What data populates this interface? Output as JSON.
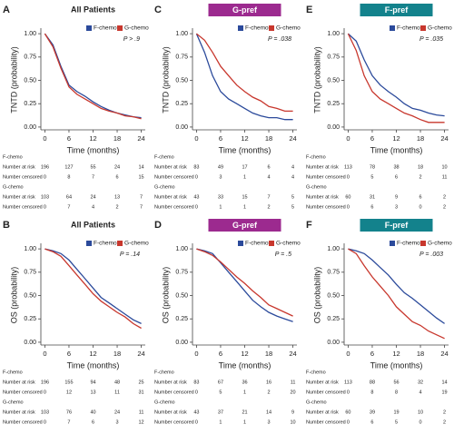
{
  "chart_data": [
    {
      "type": "line",
      "label": "A",
      "title": "All Patients",
      "y_label": "TNTD (probability)",
      "x_label": "Time (months)",
      "annotation": "P > .9",
      "xlim": [
        -1,
        25
      ],
      "ylim": [
        -0.03,
        1.04
      ],
      "xticks": [
        0,
        6,
        12,
        18,
        24
      ],
      "yticks": [
        {
          "value": 0,
          "label": "0.00"
        },
        {
          "value": 0.25,
          "label": "0.25"
        },
        {
          "value": 0.5,
          "label": "0.50"
        },
        {
          "value": 0.75,
          "label": "0.75"
        },
        {
          "value": 1,
          "label": "1.00"
        }
      ],
      "series": [
        {
          "name": "F-chemo",
          "color": "#2b4a9b",
          "x": [
            0,
            2,
            4,
            6,
            8,
            10,
            12,
            14,
            16,
            18,
            20,
            22,
            24
          ],
          "values": [
            1,
            0.88,
            0.65,
            0.45,
            0.38,
            0.33,
            0.27,
            0.22,
            0.18,
            0.15,
            0.13,
            0.11,
            0.1
          ]
        },
        {
          "name": "G-chemo",
          "color": "#c8372d",
          "x": [
            0,
            2,
            4,
            6,
            8,
            10,
            12,
            14,
            16,
            18,
            20,
            22,
            24
          ],
          "values": [
            1,
            0.86,
            0.63,
            0.43,
            0.35,
            0.3,
            0.25,
            0.2,
            0.17,
            0.15,
            0.12,
            0.11,
            0.09
          ]
        }
      ],
      "risk_table": [
        {
          "name": "F-chemo",
          "rows": [
            {
              "label": "Number at risk",
              "values": [
                196,
                127,
                55,
                24,
                14
              ]
            },
            {
              "label": "Number censored",
              "values": [
                0,
                8,
                7,
                6,
                15
              ]
            }
          ]
        },
        {
          "name": "G-chemo",
          "rows": [
            {
              "label": "Number at risk",
              "values": [
                103,
                64,
                24,
                13,
                7
              ]
            },
            {
              "label": "Number censored",
              "values": [
                0,
                7,
                4,
                2,
                7
              ]
            }
          ]
        }
      ]
    },
    {
      "type": "line",
      "label": "B",
      "title": "All Patients",
      "y_label": "OS (probability)",
      "x_label": "Time (months)",
      "annotation": "P = .14",
      "xlim": [
        -1,
        25
      ],
      "ylim": [
        -0.03,
        1.04
      ],
      "xticks": [
        0,
        6,
        12,
        18,
        24
      ],
      "yticks": [
        {
          "value": 0,
          "label": "0.00"
        },
        {
          "value": 0.25,
          "label": "0.25"
        },
        {
          "value": 0.5,
          "label": "0.50"
        },
        {
          "value": 0.75,
          "label": "0.75"
        },
        {
          "value": 1,
          "label": "1.00"
        }
      ],
      "series": [
        {
          "name": "F-chemo",
          "color": "#2b4a9b",
          "x": [
            0,
            2,
            4,
            6,
            8,
            10,
            12,
            14,
            16,
            18,
            20,
            22,
            24
          ],
          "values": [
            1,
            0.98,
            0.95,
            0.88,
            0.78,
            0.68,
            0.58,
            0.48,
            0.42,
            0.36,
            0.3,
            0.24,
            0.2
          ]
        },
        {
          "name": "G-chemo",
          "color": "#c8372d",
          "x": [
            0,
            2,
            4,
            6,
            8,
            10,
            12,
            14,
            16,
            18,
            20,
            22,
            24
          ],
          "values": [
            1,
            0.97,
            0.92,
            0.82,
            0.72,
            0.62,
            0.52,
            0.44,
            0.38,
            0.32,
            0.27,
            0.2,
            0.15
          ]
        }
      ],
      "risk_table": [
        {
          "name": "F-chemo",
          "rows": [
            {
              "label": "Number at risk",
              "values": [
                196,
                155,
                94,
                48,
                25
              ]
            },
            {
              "label": "Number censored",
              "values": [
                0,
                12,
                13,
                11,
                31
              ]
            }
          ]
        },
        {
          "name": "G-chemo",
          "rows": [
            {
              "label": "Number at risk",
              "values": [
                103,
                76,
                40,
                24,
                11
              ]
            },
            {
              "label": "Number censored",
              "values": [
                0,
                7,
                6,
                3,
                12
              ]
            }
          ]
        }
      ]
    },
    {
      "type": "line",
      "label": "C",
      "title": "G-pref",
      "title_box_color": "#9c2a8f",
      "y_label": "TNTD (probability)",
      "x_label": "Time (months)",
      "annotation": "P = .038",
      "xlim": [
        -1,
        25
      ],
      "ylim": [
        -0.03,
        1.04
      ],
      "xticks": [
        0,
        6,
        12,
        18,
        24
      ],
      "yticks": [
        {
          "value": 0,
          "label": "0.00"
        },
        {
          "value": 0.25,
          "label": "0.25"
        },
        {
          "value": 0.5,
          "label": "0.50"
        },
        {
          "value": 0.75,
          "label": "0.75"
        },
        {
          "value": 1,
          "label": "1.00"
        }
      ],
      "series": [
        {
          "name": "F-chemo",
          "color": "#2b4a9b",
          "x": [
            0,
            2,
            4,
            6,
            8,
            10,
            12,
            14,
            16,
            18,
            20,
            22,
            24
          ],
          "values": [
            1,
            0.8,
            0.55,
            0.38,
            0.3,
            0.25,
            0.2,
            0.15,
            0.12,
            0.1,
            0.1,
            0.08,
            0.08
          ]
        },
        {
          "name": "G-chemo",
          "color": "#c8372d",
          "x": [
            0,
            2,
            4,
            6,
            8,
            10,
            12,
            14,
            16,
            18,
            20,
            22,
            24
          ],
          "values": [
            1,
            0.93,
            0.8,
            0.65,
            0.55,
            0.45,
            0.38,
            0.32,
            0.28,
            0.22,
            0.2,
            0.17,
            0.17
          ]
        }
      ],
      "risk_table": [
        {
          "name": "F-chemo",
          "rows": [
            {
              "label": "Number at risk",
              "values": [
                83,
                49,
                17,
                6,
                4
              ]
            },
            {
              "label": "Number censored",
              "values": [
                0,
                3,
                1,
                4,
                4
              ]
            }
          ]
        },
        {
          "name": "G-chemo",
          "rows": [
            {
              "label": "Number at risk",
              "values": [
                43,
                33,
                15,
                7,
                5
              ]
            },
            {
              "label": "Number censored",
              "values": [
                0,
                1,
                1,
                2,
                5
              ]
            }
          ]
        }
      ]
    },
    {
      "type": "line",
      "label": "D",
      "title": "G-pref",
      "title_box_color": "#9c2a8f",
      "y_label": "OS (probability)",
      "x_label": "Time (months)",
      "annotation": "P = .5",
      "xlim": [
        -1,
        25
      ],
      "ylim": [
        -0.03,
        1.04
      ],
      "xticks": [
        0,
        6,
        12,
        18,
        24
      ],
      "yticks": [
        {
          "value": 0,
          "label": "0.00"
        },
        {
          "value": 0.25,
          "label": "0.25"
        },
        {
          "value": 0.5,
          "label": "0.50"
        },
        {
          "value": 0.75,
          "label": "0.75"
        },
        {
          "value": 1,
          "label": "1.00"
        }
      ],
      "series": [
        {
          "name": "F-chemo",
          "color": "#2b4a9b",
          "x": [
            0,
            2,
            4,
            6,
            8,
            10,
            12,
            14,
            16,
            18,
            20,
            22,
            24
          ],
          "values": [
            1,
            0.98,
            0.95,
            0.85,
            0.75,
            0.65,
            0.55,
            0.45,
            0.38,
            0.32,
            0.28,
            0.25,
            0.22
          ]
        },
        {
          "name": "G-chemo",
          "color": "#c8372d",
          "x": [
            0,
            2,
            4,
            6,
            8,
            10,
            12,
            14,
            16,
            18,
            20,
            22,
            24
          ],
          "values": [
            1,
            0.97,
            0.93,
            0.86,
            0.78,
            0.7,
            0.63,
            0.55,
            0.48,
            0.4,
            0.36,
            0.32,
            0.28
          ]
        }
      ],
      "risk_table": [
        {
          "name": "F-chemo",
          "rows": [
            {
              "label": "Number at risk",
              "values": [
                83,
                67,
                36,
                16,
                11
              ]
            },
            {
              "label": "Number censored",
              "values": [
                0,
                5,
                1,
                2,
                20
              ]
            }
          ]
        },
        {
          "name": "G-chemo",
          "rows": [
            {
              "label": "Number at risk",
              "values": [
                43,
                37,
                21,
                14,
                9
              ]
            },
            {
              "label": "Number censored",
              "values": [
                0,
                1,
                1,
                3,
                10
              ]
            }
          ]
        }
      ]
    },
    {
      "type": "line",
      "label": "E",
      "title": "F-pref",
      "title_box_color": "#13828c",
      "y_label": "TNTD (probability)",
      "x_label": "Time (months)",
      "annotation": "P = .035",
      "xlim": [
        -1,
        25
      ],
      "ylim": [
        -0.03,
        1.04
      ],
      "xticks": [
        0,
        6,
        12,
        18,
        24
      ],
      "yticks": [
        {
          "value": 0,
          "label": "0.00"
        },
        {
          "value": 0.25,
          "label": "0.25"
        },
        {
          "value": 0.5,
          "label": "0.50"
        },
        {
          "value": 0.75,
          "label": "0.75"
        },
        {
          "value": 1,
          "label": "1.00"
        }
      ],
      "series": [
        {
          "name": "F-chemo",
          "color": "#2b4a9b",
          "x": [
            0,
            2,
            4,
            6,
            8,
            10,
            12,
            14,
            16,
            18,
            20,
            22,
            24
          ],
          "values": [
            1,
            0.92,
            0.72,
            0.55,
            0.45,
            0.38,
            0.32,
            0.25,
            0.2,
            0.18,
            0.15,
            0.13,
            0.12
          ]
        },
        {
          "name": "G-chemo",
          "color": "#c8372d",
          "x": [
            0,
            2,
            4,
            6,
            8,
            10,
            12,
            14,
            16,
            18,
            20,
            22,
            24
          ],
          "values": [
            1,
            0.82,
            0.55,
            0.38,
            0.3,
            0.25,
            0.2,
            0.15,
            0.12,
            0.08,
            0.05,
            0.05,
            0.05
          ]
        }
      ],
      "risk_table": [
        {
          "name": "F-chemo",
          "rows": [
            {
              "label": "Number at risk",
              "values": [
                113,
                78,
                38,
                18,
                10
              ]
            },
            {
              "label": "Number censored",
              "values": [
                0,
                5,
                6,
                2,
                11
              ]
            }
          ]
        },
        {
          "name": "G-chemo",
          "rows": [
            {
              "label": "Number at risk",
              "values": [
                60,
                31,
                9,
                6,
                2
              ]
            },
            {
              "label": "Number censored",
              "values": [
                0,
                6,
                3,
                0,
                2
              ]
            }
          ]
        }
      ]
    },
    {
      "type": "line",
      "label": "F",
      "title": "F-pref",
      "title_box_color": "#13828c",
      "y_label": "OS (probability)",
      "x_label": "Time (months)",
      "annotation": "P = .003",
      "xlim": [
        -1,
        25
      ],
      "ylim": [
        -0.03,
        1.04
      ],
      "xticks": [
        0,
        6,
        12,
        18,
        24
      ],
      "yticks": [
        {
          "value": 0,
          "label": "0.00"
        },
        {
          "value": 0.25,
          "label": "0.25"
        },
        {
          "value": 0.5,
          "label": "0.50"
        },
        {
          "value": 0.75,
          "label": "0.75"
        },
        {
          "value": 1,
          "label": "1.00"
        }
      ],
      "series": [
        {
          "name": "F-chemo",
          "color": "#2b4a9b",
          "x": [
            0,
            2,
            4,
            6,
            8,
            10,
            12,
            14,
            16,
            18,
            20,
            22,
            24
          ],
          "values": [
            1,
            0.98,
            0.95,
            0.88,
            0.8,
            0.72,
            0.62,
            0.53,
            0.47,
            0.4,
            0.33,
            0.26,
            0.2
          ]
        },
        {
          "name": "G-chemo",
          "color": "#c8372d",
          "x": [
            0,
            2,
            4,
            6,
            8,
            10,
            12,
            14,
            16,
            18,
            20,
            22,
            24
          ],
          "values": [
            1,
            0.95,
            0.82,
            0.7,
            0.6,
            0.5,
            0.38,
            0.3,
            0.22,
            0.18,
            0.12,
            0.08,
            0.04
          ]
        }
      ],
      "risk_table": [
        {
          "name": "F-chemo",
          "rows": [
            {
              "label": "Number at risk",
              "values": [
                113,
                88,
                56,
                32,
                14
              ]
            },
            {
              "label": "Number censored",
              "values": [
                0,
                8,
                8,
                4,
                19
              ]
            }
          ]
        },
        {
          "name": "G-chemo",
          "rows": [
            {
              "label": "Number at risk",
              "values": [
                60,
                39,
                19,
                10,
                2
              ]
            },
            {
              "label": "Number censored",
              "values": [
                0,
                6,
                5,
                0,
                2
              ]
            }
          ]
        }
      ]
    }
  ]
}
